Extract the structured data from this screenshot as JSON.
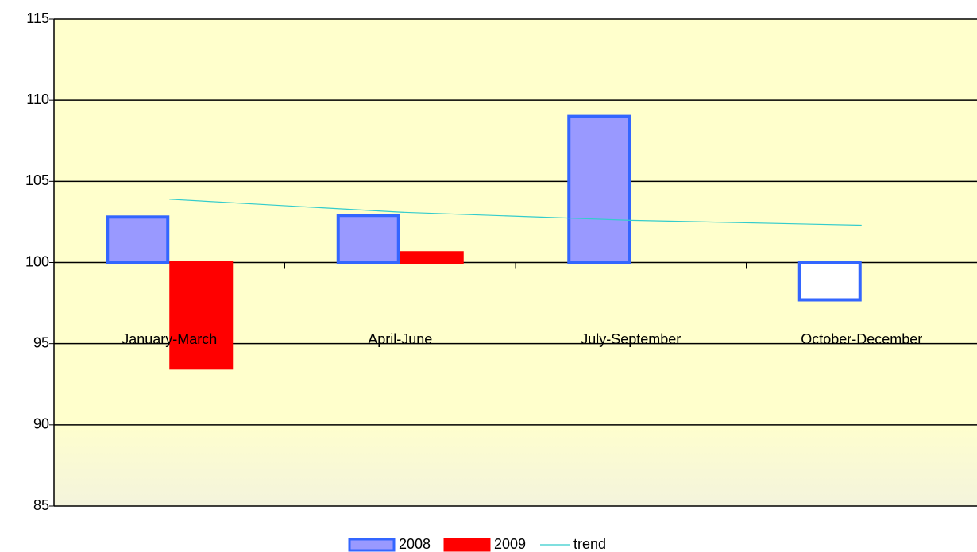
{
  "chart_data": {
    "type": "bar",
    "categories": [
      "January-March",
      "April-June",
      "July-September",
      "October-December"
    ],
    "base": 100,
    "series": [
      {
        "name": "2008",
        "type": "bar",
        "color": "#9999ff",
        "border": "#3366ff",
        "negative_color": "#ffffff",
        "values": [
          102.8,
          102.9,
          109.0,
          97.7
        ]
      },
      {
        "name": "2009",
        "type": "bar",
        "color": "#ff0000",
        "border": "#ff0000",
        "values": [
          93.5,
          100.6,
          null,
          null
        ]
      },
      {
        "name": "trend",
        "type": "line",
        "color": "#33cccc",
        "values": [
          103.9,
          103.1,
          102.6,
          102.3
        ]
      }
    ],
    "ylim": [
      85,
      115
    ],
    "yticks": [
      85,
      90,
      95,
      100,
      105,
      110,
      115
    ],
    "grid": true,
    "legend": "bottom"
  }
}
